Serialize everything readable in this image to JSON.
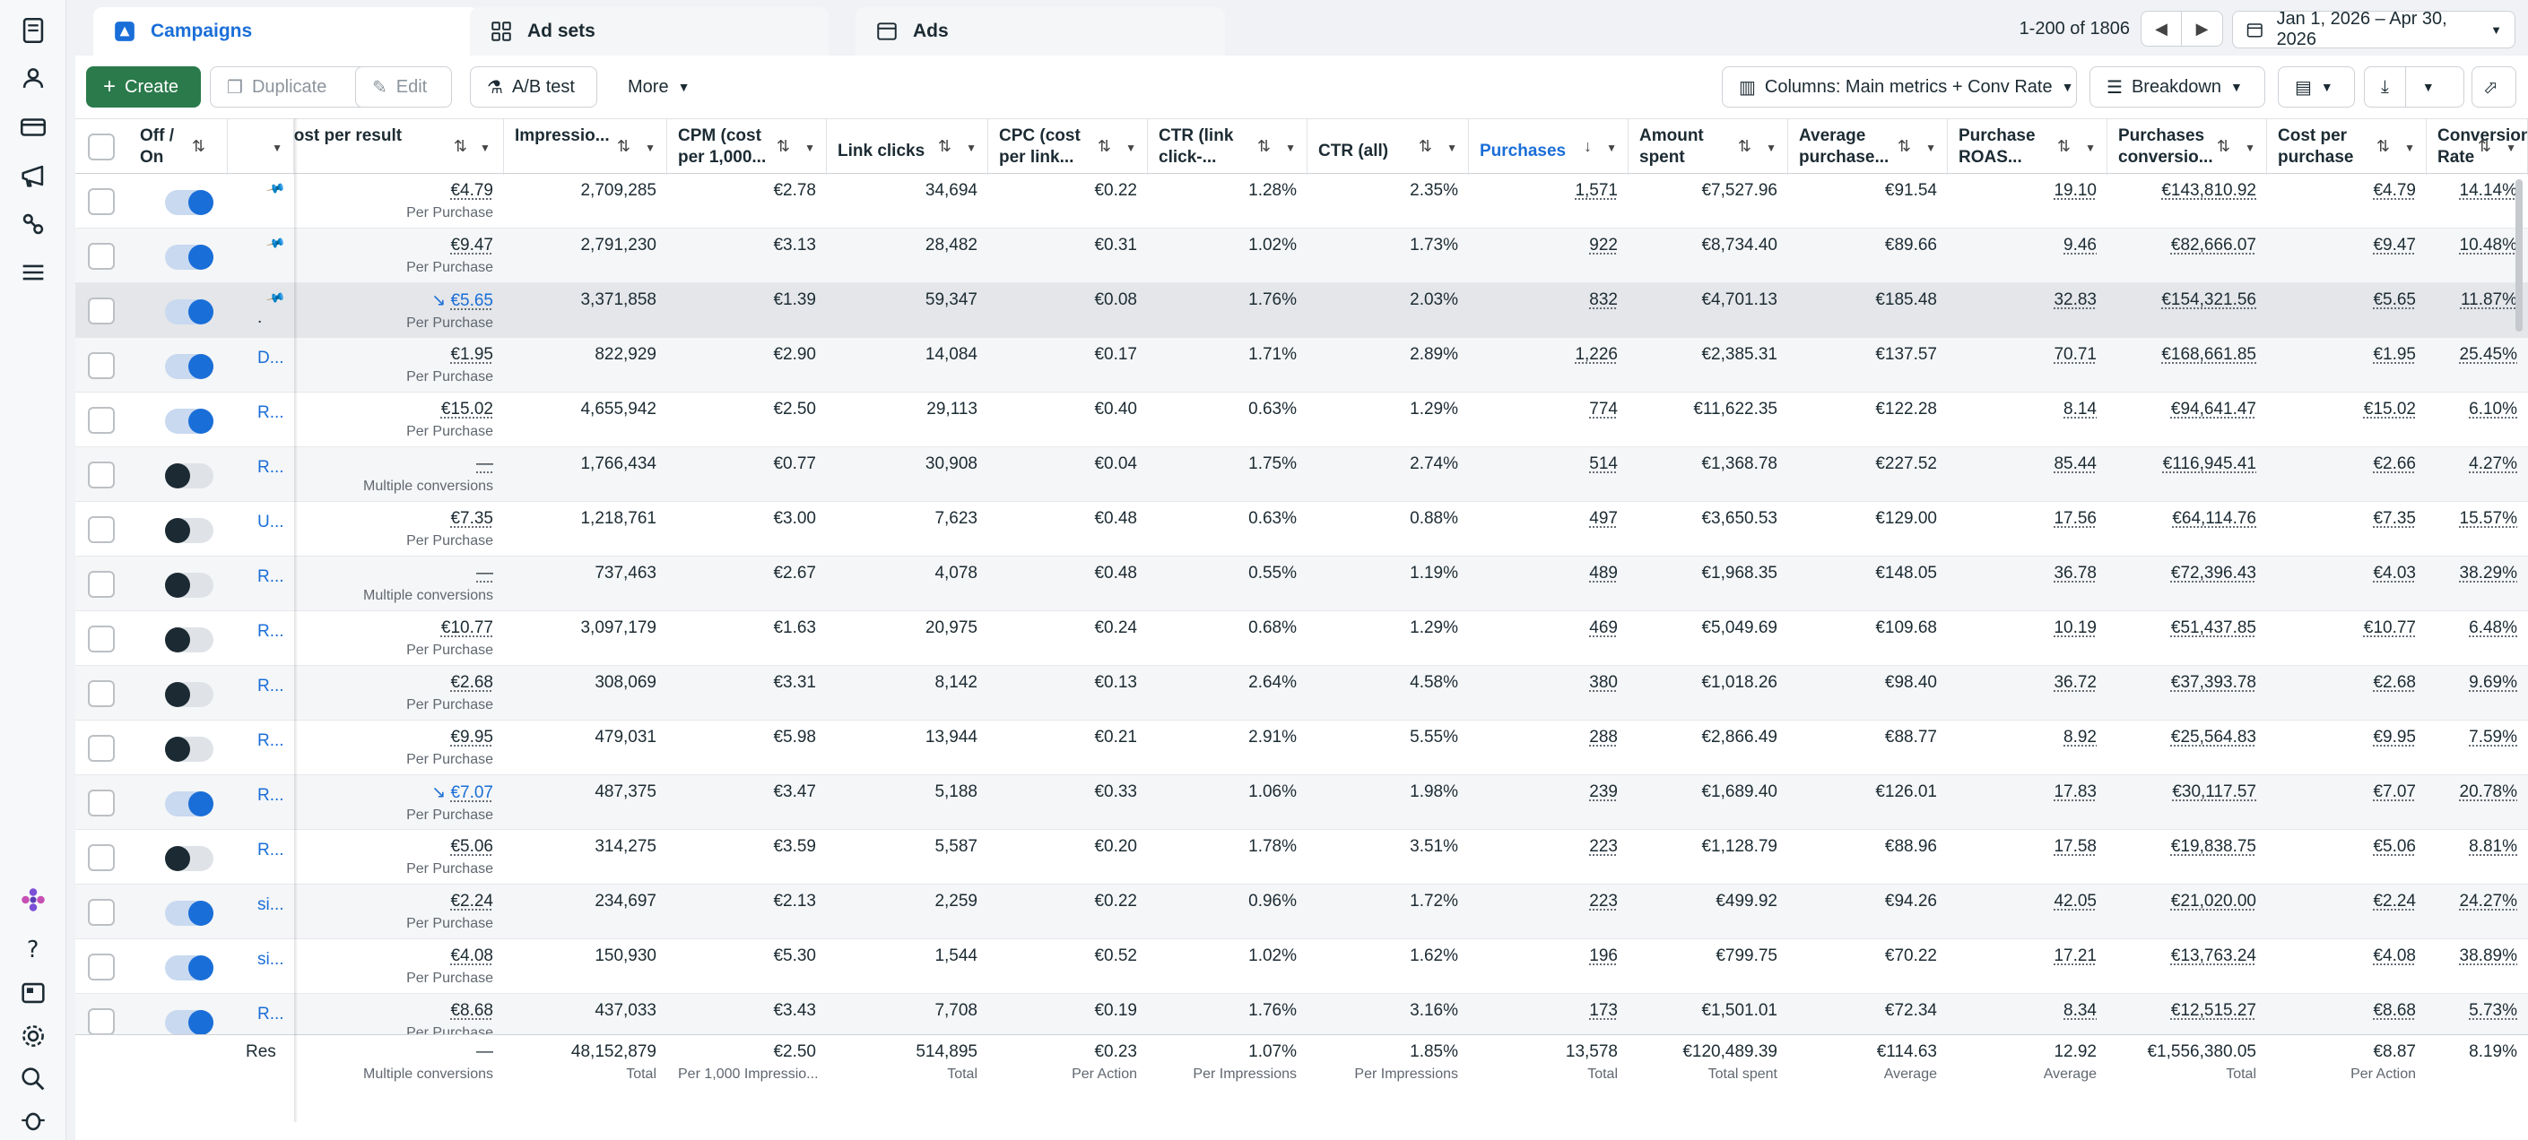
{
  "tabs": [
    {
      "label": "Campaigns",
      "icon": "campaign-icon"
    },
    {
      "label": "Ad sets",
      "icon": "grid-icon"
    },
    {
      "label": "Ads",
      "icon": "ad-icon"
    }
  ],
  "paging": {
    "range": "1-200 of 1806"
  },
  "date_range": "Jan 1, 2026 – Apr 30, 2026",
  "toolbar": {
    "create": "Create",
    "duplicate": "Duplicate",
    "edit": "Edit",
    "ab_test": "A/B test",
    "more": "More",
    "columns": "Columns: Main metrics + Conv Rate",
    "breakdown": "Breakdown"
  },
  "columns": [
    {
      "key": "onoff",
      "label": "Off / On"
    },
    {
      "key": "name",
      "label": ""
    },
    {
      "key": "cpr",
      "label": "Cost per result"
    },
    {
      "key": "impr",
      "label": "Impressio..."
    },
    {
      "key": "cpm",
      "label": "CPM (cost per 1,000..."
    },
    {
      "key": "clicks",
      "label": "Link clicks"
    },
    {
      "key": "cpc",
      "label": "CPC (cost per link..."
    },
    {
      "key": "ctr_link",
      "label": "CTR (link click-..."
    },
    {
      "key": "ctr_all",
      "label": "CTR (all)"
    },
    {
      "key": "purch",
      "label": "Purchases"
    },
    {
      "key": "spent",
      "label": "Amount spent"
    },
    {
      "key": "avg",
      "label": "Average purchase..."
    },
    {
      "key": "roas",
      "label": "Purchase ROAS..."
    },
    {
      "key": "conv",
      "label": "Purchases conversio..."
    },
    {
      "key": "cpp",
      "label": "Cost per purchase"
    },
    {
      "key": "rate",
      "label": "Conversion Rate"
    }
  ],
  "rows": [
    {
      "on": true,
      "pinned": true,
      "name": "",
      "cpr": "€4.79",
      "cpr_sub": "Per Purchase",
      "cpr_link": false,
      "impr": "2,709,285",
      "cpm": "€2.78",
      "clicks": "34,694",
      "cpc": "€0.22",
      "ctr_link": "1.28%",
      "ctr_all": "2.35%",
      "purch": "1,571",
      "spent": "€7,527.96",
      "avg": "€91.54",
      "roas": "19.10",
      "conv": "€143,810.92",
      "cpp": "€4.79",
      "rate": "14.14%"
    },
    {
      "on": true,
      "pinned": true,
      "name": "",
      "cpr": "€9.47",
      "cpr_sub": "Per Purchase",
      "cpr_link": false,
      "impr": "2,791,230",
      "cpm": "€3.13",
      "clicks": "28,482",
      "cpc": "€0.31",
      "ctr_link": "1.02%",
      "ctr_all": "1.73%",
      "purch": "922",
      "spent": "€8,734.40",
      "avg": "€89.66",
      "roas": "9.46",
      "conv": "€82,666.07",
      "cpp": "€9.47",
      "rate": "10.48%"
    },
    {
      "on": true,
      "pinned": true,
      "name": ".",
      "cpr": "€5.65",
      "cpr_sub": "Per Purchase",
      "cpr_link": true,
      "impr": "3,371,858",
      "cpm": "€1.39",
      "clicks": "59,347",
      "cpc": "€0.08",
      "ctr_link": "1.76%",
      "ctr_all": "2.03%",
      "purch": "832",
      "spent": "€4,701.13",
      "avg": "€185.48",
      "roas": "32.83",
      "conv": "€154,321.56",
      "cpp": "€5.65",
      "rate": "11.87%"
    },
    {
      "on": true,
      "pinned": false,
      "name": "D...",
      "cpr": "€1.95",
      "cpr_sub": "Per Purchase",
      "cpr_link": false,
      "impr": "822,929",
      "cpm": "€2.90",
      "clicks": "14,084",
      "cpc": "€0.17",
      "ctr_link": "1.71%",
      "ctr_all": "2.89%",
      "purch": "1,226",
      "spent": "€2,385.31",
      "avg": "€137.57",
      "roas": "70.71",
      "conv": "€168,661.85",
      "cpp": "€1.95",
      "rate": "25.45%"
    },
    {
      "on": true,
      "pinned": false,
      "name": "R...",
      "cpr": "€15.02",
      "cpr_sub": "Per Purchase",
      "cpr_link": false,
      "impr": "4,655,942",
      "cpm": "€2.50",
      "clicks": "29,113",
      "cpc": "€0.40",
      "ctr_link": "0.63%",
      "ctr_all": "1.29%",
      "purch": "774",
      "spent": "€11,622.35",
      "avg": "€122.28",
      "roas": "8.14",
      "conv": "€94,641.47",
      "cpp": "€15.02",
      "rate": "6.10%"
    },
    {
      "on": false,
      "pinned": false,
      "name": "R...",
      "cpr": "—",
      "cpr_sub": "Multiple conversions",
      "cpr_link": false,
      "impr": "1,766,434",
      "cpm": "€0.77",
      "clicks": "30,908",
      "cpc": "€0.04",
      "ctr_link": "1.75%",
      "ctr_all": "2.74%",
      "purch": "514",
      "spent": "€1,368.78",
      "avg": "€227.52",
      "roas": "85.44",
      "conv": "€116,945.41",
      "cpp": "€2.66",
      "rate": "4.27%"
    },
    {
      "on": false,
      "pinned": false,
      "name": "U...",
      "cpr": "€7.35",
      "cpr_sub": "Per Purchase",
      "cpr_link": false,
      "impr": "1,218,761",
      "cpm": "€3.00",
      "clicks": "7,623",
      "cpc": "€0.48",
      "ctr_link": "0.63%",
      "ctr_all": "0.88%",
      "purch": "497",
      "spent": "€3,650.53",
      "avg": "€129.00",
      "roas": "17.56",
      "conv": "€64,114.76",
      "cpp": "€7.35",
      "rate": "15.57%"
    },
    {
      "on": false,
      "pinned": false,
      "name": "R...",
      "cpr": "—",
      "cpr_sub": "Multiple conversions",
      "cpr_link": false,
      "impr": "737,463",
      "cpm": "€2.67",
      "clicks": "4,078",
      "cpc": "€0.48",
      "ctr_link": "0.55%",
      "ctr_all": "1.19%",
      "purch": "489",
      "spent": "€1,968.35",
      "avg": "€148.05",
      "roas": "36.78",
      "conv": "€72,396.43",
      "cpp": "€4.03",
      "rate": "38.29%"
    },
    {
      "on": false,
      "pinned": false,
      "name": "R...",
      "cpr": "€10.77",
      "cpr_sub": "Per Purchase",
      "cpr_link": false,
      "impr": "3,097,179",
      "cpm": "€1.63",
      "clicks": "20,975",
      "cpc": "€0.24",
      "ctr_link": "0.68%",
      "ctr_all": "1.29%",
      "purch": "469",
      "spent": "€5,049.69",
      "avg": "€109.68",
      "roas": "10.19",
      "conv": "€51,437.85",
      "cpp": "€10.77",
      "rate": "6.48%"
    },
    {
      "on": false,
      "pinned": false,
      "name": "R...",
      "cpr": "€2.68",
      "cpr_sub": "Per Purchase",
      "cpr_link": false,
      "impr": "308,069",
      "cpm": "€3.31",
      "clicks": "8,142",
      "cpc": "€0.13",
      "ctr_link": "2.64%",
      "ctr_all": "4.58%",
      "purch": "380",
      "spent": "€1,018.26",
      "avg": "€98.40",
      "roas": "36.72",
      "conv": "€37,393.78",
      "cpp": "€2.68",
      "rate": "9.69%"
    },
    {
      "on": false,
      "pinned": false,
      "name": "R...",
      "cpr": "€9.95",
      "cpr_sub": "Per Purchase",
      "cpr_link": false,
      "impr": "479,031",
      "cpm": "€5.98",
      "clicks": "13,944",
      "cpc": "€0.21",
      "ctr_link": "2.91%",
      "ctr_all": "5.55%",
      "purch": "288",
      "spent": "€2,866.49",
      "avg": "€88.77",
      "roas": "8.92",
      "conv": "€25,564.83",
      "cpp": "€9.95",
      "rate": "7.59%"
    },
    {
      "on": true,
      "pinned": false,
      "name": "R...",
      "cpr": "€7.07",
      "cpr_sub": "Per Purchase",
      "cpr_link": true,
      "impr": "487,375",
      "cpm": "€3.47",
      "clicks": "5,188",
      "cpc": "€0.33",
      "ctr_link": "1.06%",
      "ctr_all": "1.98%",
      "purch": "239",
      "spent": "€1,689.40",
      "avg": "€126.01",
      "roas": "17.83",
      "conv": "€30,117.57",
      "cpp": "€7.07",
      "rate": "20.78%"
    },
    {
      "on": false,
      "pinned": false,
      "name": "R...",
      "cpr": "€5.06",
      "cpr_sub": "Per Purchase",
      "cpr_link": false,
      "impr": "314,275",
      "cpm": "€3.59",
      "clicks": "5,587",
      "cpc": "€0.20",
      "ctr_link": "1.78%",
      "ctr_all": "3.51%",
      "purch": "223",
      "spent": "€1,128.79",
      "avg": "€88.96",
      "roas": "17.58",
      "conv": "€19,838.75",
      "cpp": "€5.06",
      "rate": "8.81%"
    },
    {
      "on": true,
      "pinned": false,
      "name": "si...",
      "cpr": "€2.24",
      "cpr_sub": "Per Purchase",
      "cpr_link": false,
      "impr": "234,697",
      "cpm": "€2.13",
      "clicks": "2,259",
      "cpc": "€0.22",
      "ctr_link": "0.96%",
      "ctr_all": "1.72%",
      "purch": "223",
      "spent": "€499.92",
      "avg": "€94.26",
      "roas": "42.05",
      "conv": "€21,020.00",
      "cpp": "€2.24",
      "rate": "24.27%"
    },
    {
      "on": true,
      "pinned": false,
      "name": "si...",
      "cpr": "€4.08",
      "cpr_sub": "Per Purchase",
      "cpr_link": false,
      "impr": "150,930",
      "cpm": "€5.30",
      "clicks": "1,544",
      "cpc": "€0.52",
      "ctr_link": "1.02%",
      "ctr_all": "1.62%",
      "purch": "196",
      "spent": "€799.75",
      "avg": "€70.22",
      "roas": "17.21",
      "conv": "€13,763.24",
      "cpp": "€4.08",
      "rate": "38.89%"
    },
    {
      "on": true,
      "pinned": false,
      "name": "R...",
      "cpr": "€8.68",
      "cpr_sub": "Per Purchase",
      "cpr_link": false,
      "impr": "437,033",
      "cpm": "€3.43",
      "clicks": "7,708",
      "cpc": "€0.19",
      "ctr_link": "1.76%",
      "ctr_all": "3.16%",
      "purch": "173",
      "spent": "€1,501.01",
      "avg": "€72.34",
      "roas": "8.34",
      "conv": "€12,515.27",
      "cpp": "€8.68",
      "rate": "5.73%"
    }
  ],
  "totals": {
    "label": "Res",
    "cpr": "—",
    "cpr_sub": "Multiple conversions",
    "impr": "48,152,879",
    "impr_sub": "Total",
    "cpm": "€2.50",
    "cpm_sub": "Per 1,000 Impressio...",
    "clicks": "514,895",
    "clicks_sub": "Total",
    "cpc": "€0.23",
    "cpc_sub": "Per Action",
    "ctr_link": "1.07%",
    "ctr_link_sub": "Per Impressions",
    "ctr_all": "1.85%",
    "ctr_all_sub": "Per Impressions",
    "purch": "13,578",
    "purch_sub": "Total",
    "spent": "€120,489.39",
    "spent_sub": "Total spent",
    "avg": "€114.63",
    "avg_sub": "Average",
    "roas": "12.92",
    "roas_sub": "Average",
    "conv": "€1,556,380.05",
    "conv_sub": "Total",
    "cpp": "€8.87",
    "cpp_sub": "Per Action",
    "rate": "8.19%",
    "rate_sub": ""
  },
  "colors": {
    "accent": "#1a6ed8",
    "create": "#2b7a4b"
  }
}
